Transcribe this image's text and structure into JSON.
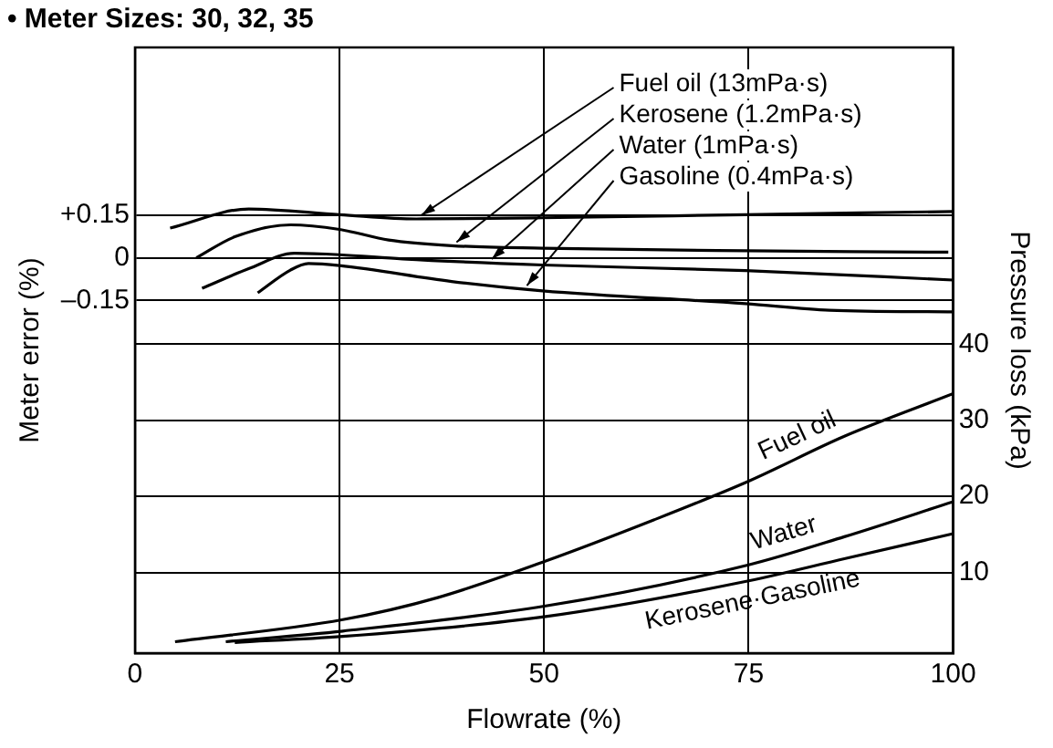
{
  "chart_data": {
    "type": "line",
    "title": "• Meter Sizes: 30, 32, 35",
    "xlabel": "Flowrate (%)",
    "ylabel": "Meter error (%)",
    "y2label": "Pressure loss (kPa)",
    "xlim": [
      0,
      100
    ],
    "xticks": [
      0,
      25,
      50,
      75,
      100
    ],
    "ylim": [
      -1.39,
      0.74
    ],
    "yticks": [
      {
        "value": 0.15,
        "label": "+0.15"
      },
      0,
      {
        "value": -0.15,
        "label": "–0.15"
      }
    ],
    "y2lim": [
      -0.6,
      79
    ],
    "y2ticks": [
      10,
      20,
      30,
      40
    ],
    "grid": true,
    "legend": false,
    "marker": "none",
    "line_style": "solid",
    "series": [
      {
        "name": "Fuel oil (13mPa·s)",
        "color": "#000000",
        "x": [
          4.3,
          13.9,
          25,
          34.4,
          49.8,
          74.6,
          100
        ],
        "values": [
          0.105,
          0.172,
          0.152,
          0.137,
          0.141,
          0.152,
          0.163
        ]
      },
      {
        "name": "Kerosene (1.2mPa·s)",
        "color": "#000000",
        "x": [
          7.5,
          12.2,
          19,
          25,
          31,
          38.7,
          49.8,
          74.6,
          99.4
        ],
        "values": [
          0,
          0.074,
          0.116,
          0.1,
          0.063,
          0.043,
          0.034,
          0.025,
          0.02
        ]
      },
      {
        "name": "Water (1mPa·s)",
        "color": "#000000",
        "x": [
          8.2,
          13.9,
          19.5,
          25,
          32.7,
          49.8,
          74.6,
          100
        ],
        "values": [
          -0.107,
          -0.038,
          0.016,
          0.011,
          -0.004,
          -0.025,
          -0.045,
          -0.078
        ]
      },
      {
        "name": "Gasoline (0.4mPa·s)",
        "color": "#000000",
        "x": [
          15,
          19,
          21.2,
          25,
          38.7,
          49.8,
          74.6,
          84.9,
          100
        ],
        "values": [
          -0.123,
          -0.043,
          -0.02,
          -0.027,
          -0.083,
          -0.116,
          -0.161,
          -0.184,
          -0.19
        ]
      },
      {
        "name": "Fuel oil",
        "color": "#000000",
        "axis": "y2",
        "x": [
          4.9,
          25.4,
          37,
          50.2,
          63.4,
          75,
          86.7,
          100
        ],
        "values": [
          0.9,
          3.8,
          6.7,
          11.5,
          16.9,
          22,
          27.9,
          33.5
        ]
      },
      {
        "name": "Water",
        "color": "#000000",
        "axis": "y2",
        "x": [
          11.1,
          25.4,
          50.2,
          75,
          86.7,
          100
        ],
        "values": [
          0.9,
          2.3,
          5.6,
          11,
          14.7,
          19.3
        ]
      },
      {
        "name": "Kerosene·Gasoline",
        "color": "#000000",
        "axis": "y2",
        "x": [
          12.2,
          25.4,
          50.2,
          75,
          86.7,
          100
        ],
        "values": [
          0.8,
          1.6,
          4.2,
          8.9,
          11.8,
          15.1
        ]
      }
    ]
  }
}
